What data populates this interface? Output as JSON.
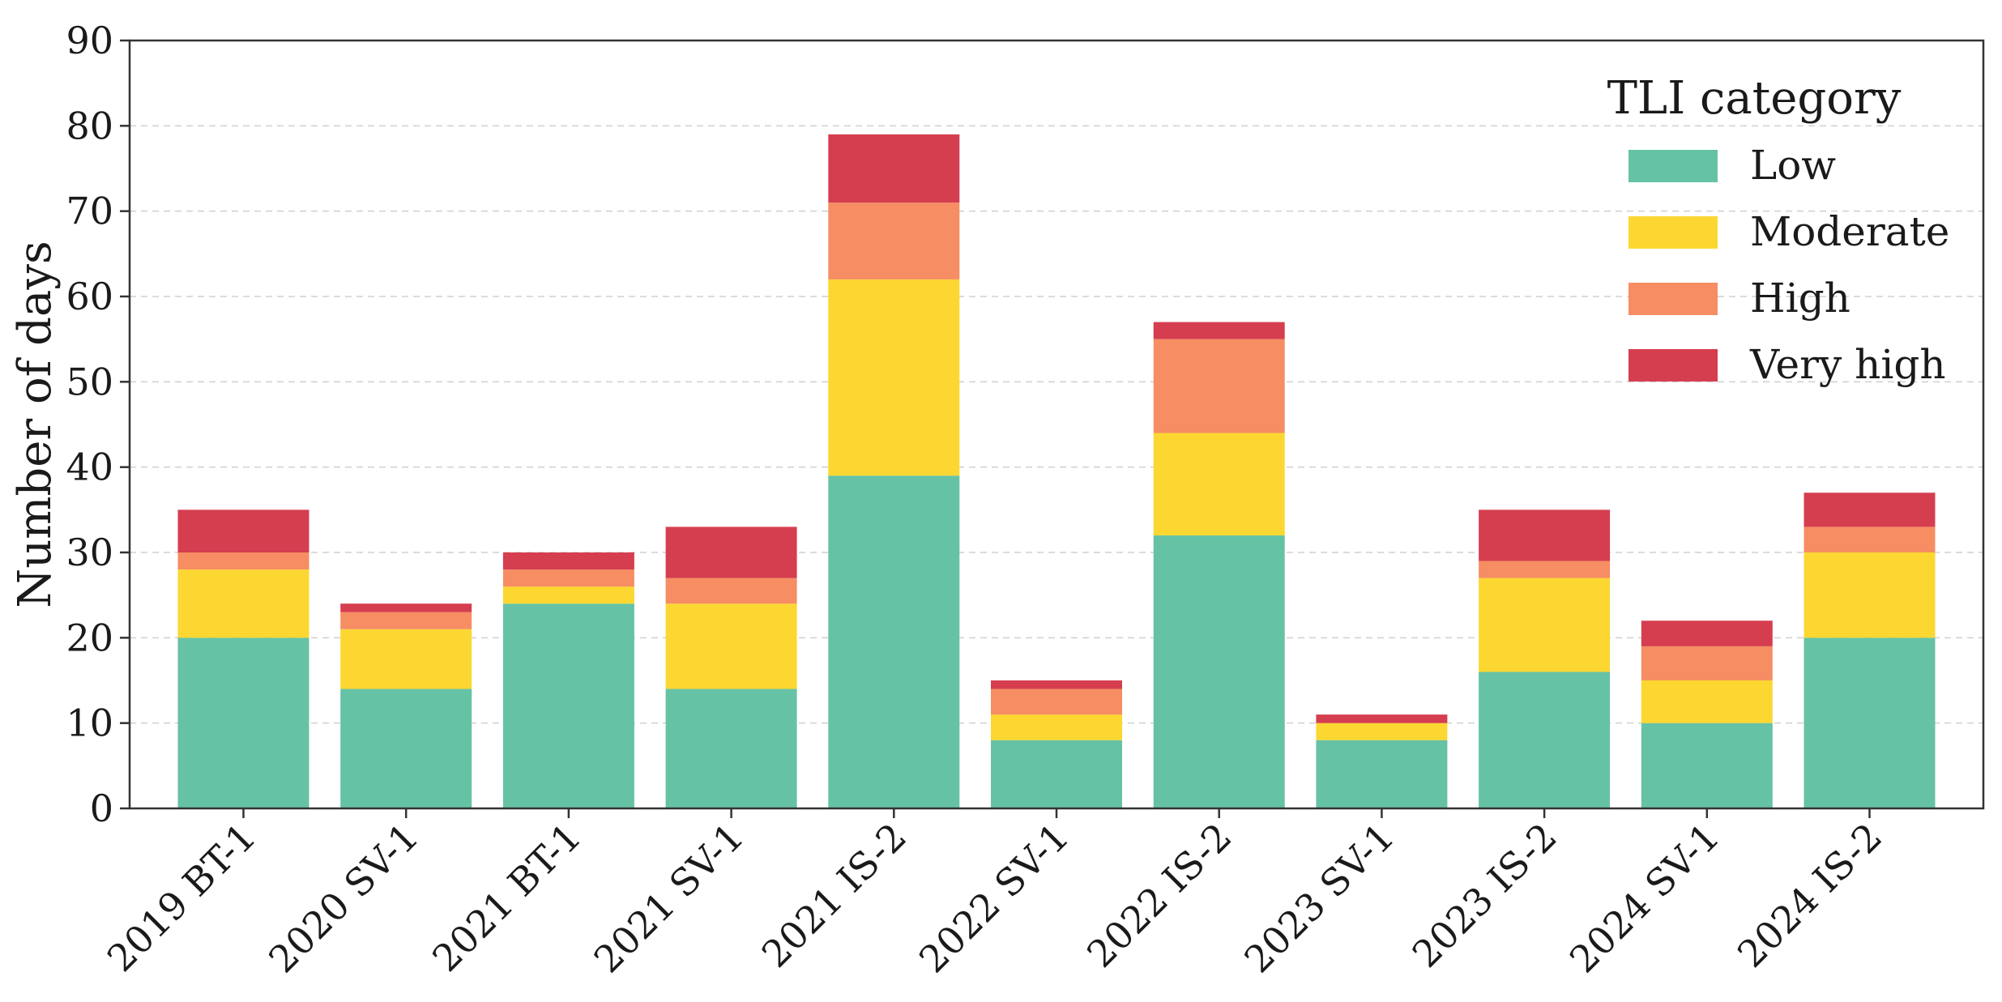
{
  "chart_data": {
    "type": "bar",
    "stacked": true,
    "title": "",
    "xlabel": "",
    "ylabel": "Number of days",
    "ylim": [
      0,
      90
    ],
    "yticks": [
      0,
      10,
      20,
      30,
      40,
      50,
      60,
      70,
      80,
      90
    ],
    "grid": "horizontal dashed",
    "legend": {
      "title": "TLI category",
      "position": "top-right"
    },
    "categories": [
      "2019 BT-1",
      "2020 SV-1",
      "2021 BT-1",
      "2021 SV-1",
      "2021 IS-2",
      "2022 SV-1",
      "2022 IS-2",
      "2023 SV-1",
      "2023 IS-2",
      "2024 SV-1",
      "2024 IS-2"
    ],
    "series": [
      {
        "name": "Low",
        "color": "#66c2a5",
        "values": [
          20,
          14,
          24,
          14,
          39,
          8,
          32,
          8,
          16,
          10,
          20
        ]
      },
      {
        "name": "Moderate",
        "color": "#fcd731",
        "values": [
          8,
          7,
          2,
          10,
          23,
          3,
          12,
          2,
          11,
          5,
          10
        ]
      },
      {
        "name": "High",
        "color": "#f68d63",
        "values": [
          2,
          2,
          2,
          3,
          9,
          3,
          11,
          0,
          2,
          4,
          3
        ]
      },
      {
        "name": "Very high",
        "color": "#d53e4f",
        "values": [
          5,
          1,
          2,
          6,
          8,
          1,
          2,
          1,
          6,
          3,
          4
        ]
      }
    ]
  }
}
